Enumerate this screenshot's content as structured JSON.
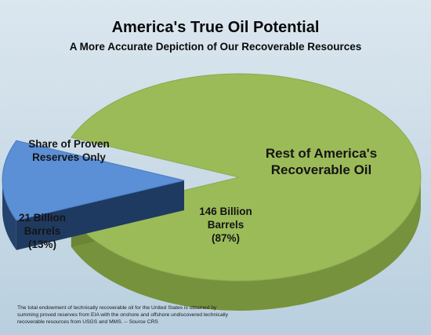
{
  "title": "America's True Oil Potential",
  "subtitle": "A More Accurate Depiction of Our Recoverable Resources",
  "colors": {
    "green_top": "#9bbb59",
    "green_side": "#76923c",
    "blue_top": "#5b8fd6",
    "blue_side": "#1f3a60"
  },
  "chart_data": {
    "type": "pie",
    "title": "America's True Oil Potential",
    "subtitle": "A More Accurate Depiction of Our Recoverable Resources",
    "units": "Billion Barrels",
    "slices": [
      {
        "name": "Share of Proven Reserves Only",
        "value": 21,
        "percent": 13,
        "exploded": true,
        "color": "#5b8fd6",
        "label_lines": [
          "Share of Proven",
          "Reserves Only"
        ],
        "value_lines": [
          "21 Billion",
          "Barrels",
          "(13%)"
        ]
      },
      {
        "name": "Rest of America's Recoverable Oil",
        "value": 146,
        "percent": 87,
        "exploded": false,
        "color": "#9bbb59",
        "label_lines": [
          "Rest of America's",
          "Recoverable Oil"
        ],
        "value_lines": [
          "146 Billion",
          "Barrels",
          "(87%)"
        ]
      }
    ],
    "style": "3d"
  },
  "footnote_lines": [
    "The total endowment of technically recoverable oil for the United States is obtained by",
    "summing proved reserves from EIA with the onshore and offshore undiscovered technically",
    "recoverable resources from USGS and MMS. -- Source CRS"
  ]
}
